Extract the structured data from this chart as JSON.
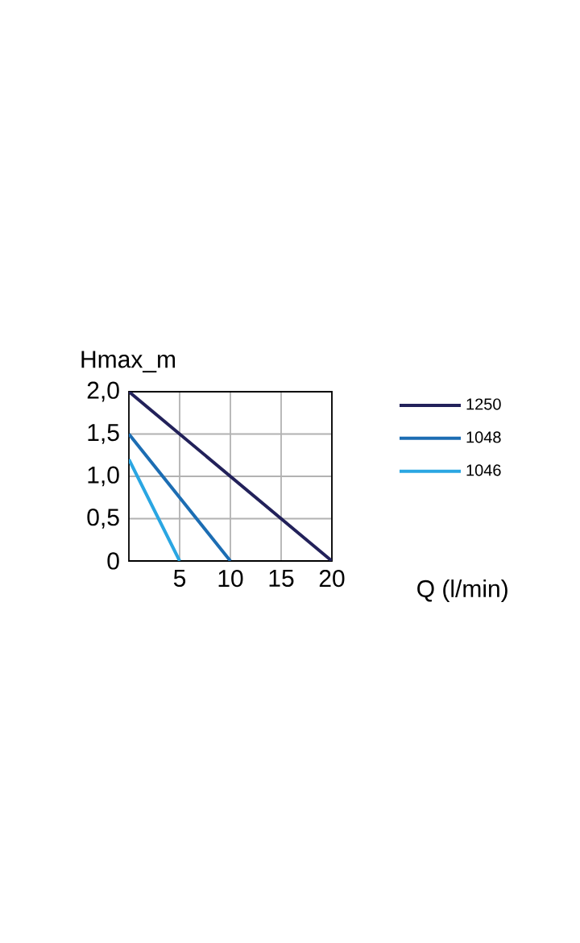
{
  "chart_data": {
    "type": "line",
    "xlabel": "Q (l/min)",
    "ylabel": "Hmax_m",
    "xlim": [
      0,
      20
    ],
    "ylim": [
      0,
      2
    ],
    "xticks": [
      5,
      10,
      15,
      20
    ],
    "yticks": [
      {
        "value": 0,
        "label": "0"
      },
      {
        "value": 0.5,
        "label": "0,5"
      },
      {
        "value": 1,
        "label": "1,0"
      },
      {
        "value": 1.5,
        "label": "1,5"
      },
      {
        "value": 2,
        "label": "2,0"
      }
    ],
    "grid": true,
    "legend": "right",
    "marker": "none",
    "line_style": "solid",
    "series": [
      {
        "name": "1250",
        "color": "#22215a",
        "x": [
          0,
          20
        ],
        "values": [
          2,
          0
        ]
      },
      {
        "name": "1048",
        "color": "#1c6db3",
        "x": [
          0,
          10
        ],
        "values": [
          1.5,
          0
        ]
      },
      {
        "name": "1046",
        "color": "#2aa6e2",
        "x": [
          0,
          5
        ],
        "values": [
          1.2,
          0
        ]
      }
    ]
  }
}
